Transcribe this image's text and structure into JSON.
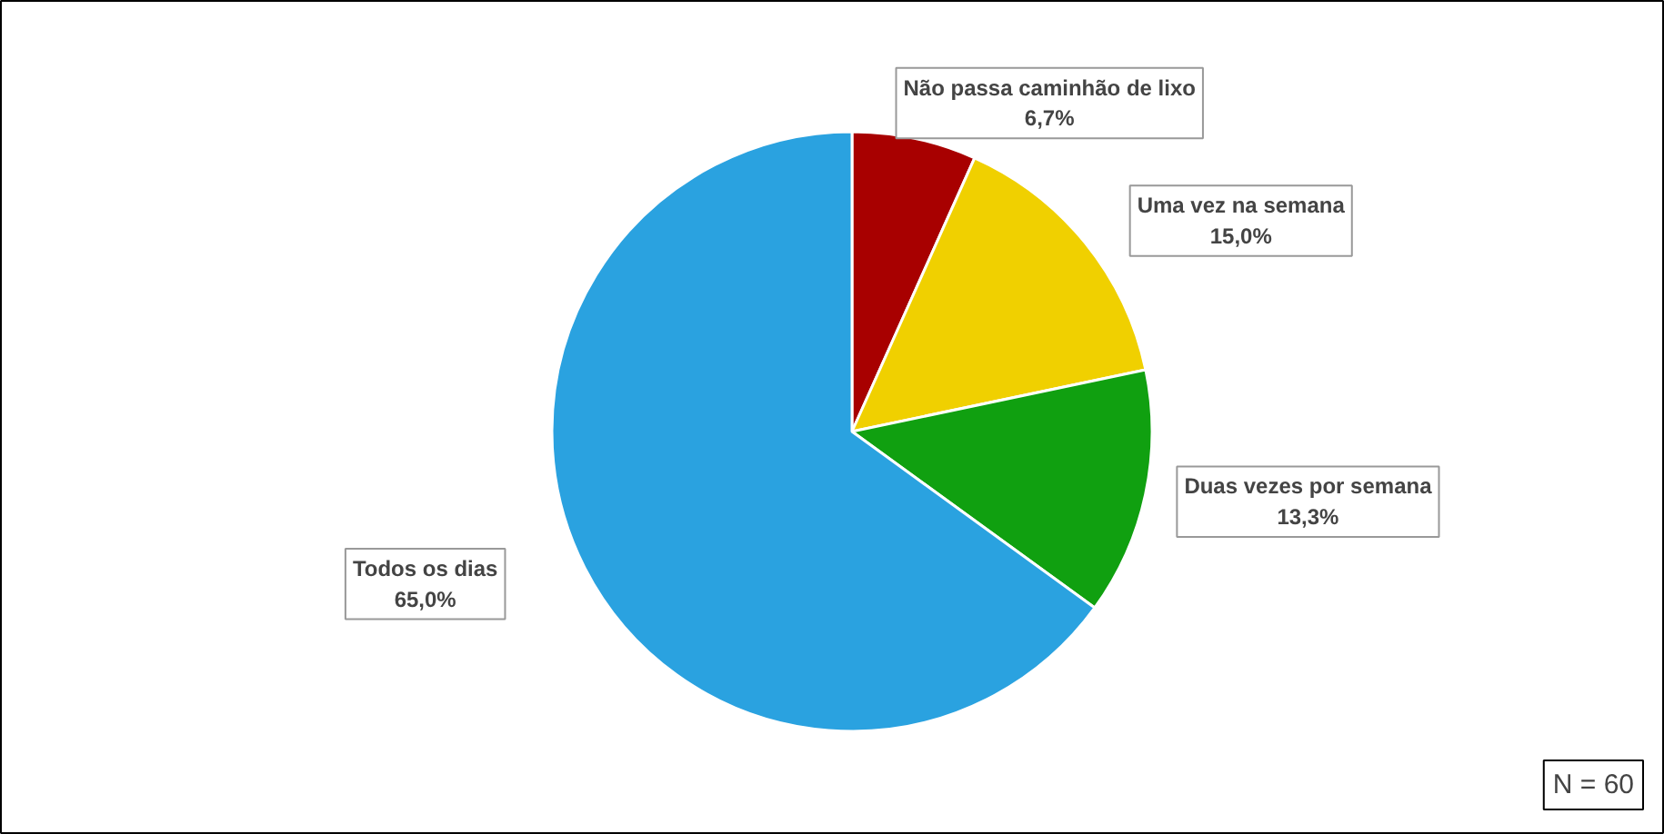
{
  "chart_data": {
    "type": "pie",
    "categories": [
      "Não passa caminhão de lixo",
      "Uma vez na semana",
      "Duas vezes por semana",
      "Todos os dias"
    ],
    "values": [
      6.7,
      15.0,
      13.3,
      65.0
    ],
    "colors": [
      "#a80000",
      "#f0d000",
      "#10a010",
      "#2aa2e0"
    ],
    "value_labels": [
      "6,7%",
      "15,0%",
      "13,3%",
      "65,0%"
    ],
    "annotations": [
      "N = 60"
    ]
  }
}
